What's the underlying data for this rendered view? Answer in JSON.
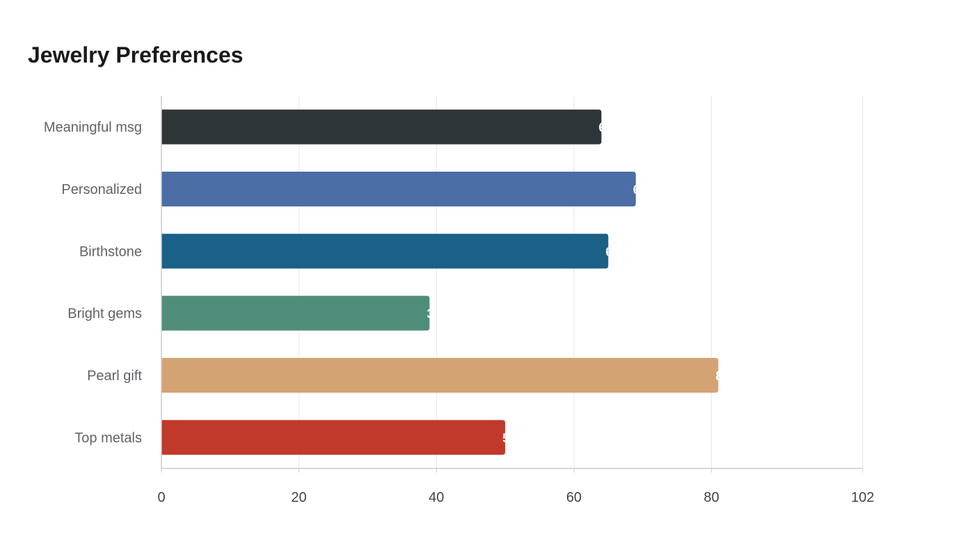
{
  "chart_data": {
    "type": "bar",
    "orientation": "horizontal",
    "title": "Jewelry Preferences",
    "xlabel": "",
    "ylabel": "",
    "categories": [
      "Meaningful msg",
      "Personalized",
      "Birthstone",
      "Bright gems",
      "Pearl gift",
      "Top metals"
    ],
    "values": [
      64,
      69,
      65,
      39,
      81,
      50
    ],
    "colors": [
      "#2e3538",
      "#4a6ea5",
      "#1a6087",
      "#4f8c7a",
      "#d4a373",
      "#c0392b"
    ],
    "xlim": [
      0,
      102
    ],
    "xticks": [
      0,
      20,
      40,
      60,
      80,
      102
    ],
    "grid": true,
    "legend": "none"
  }
}
